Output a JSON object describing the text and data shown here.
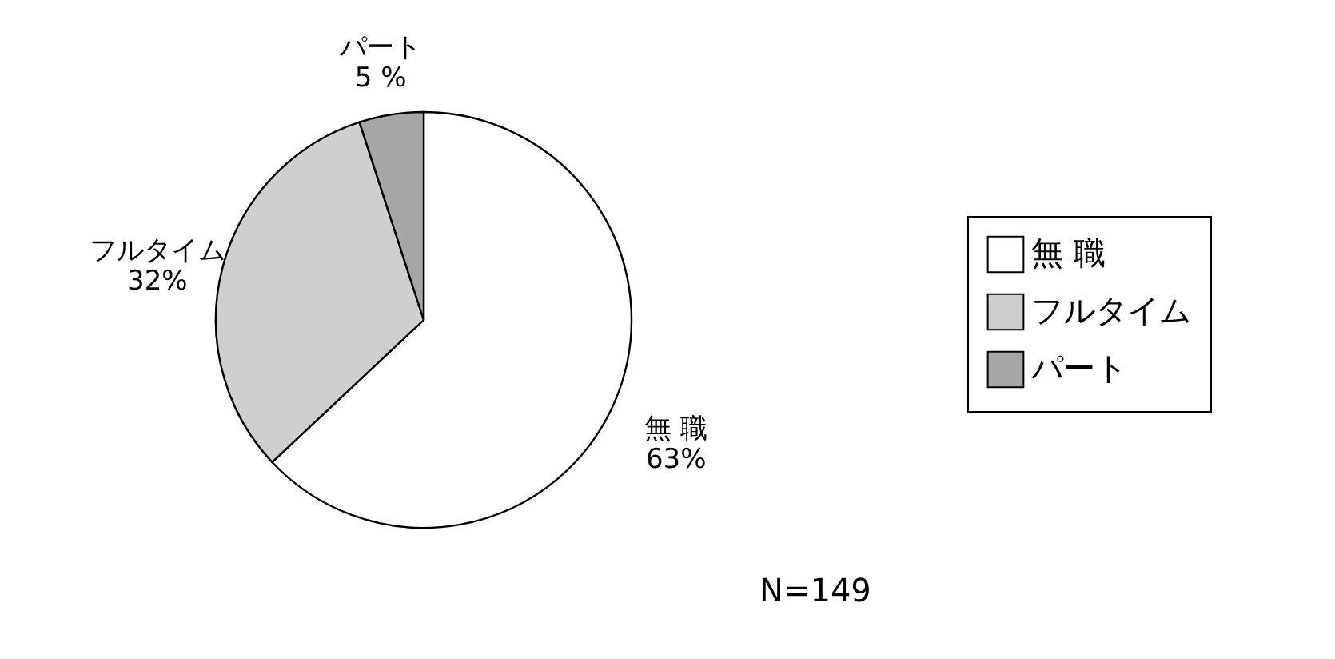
{
  "chart_data": {
    "type": "pie",
    "categories": [
      "無 職",
      "フルタイム",
      "パート"
    ],
    "values": [
      63,
      32,
      5
    ],
    "colors": [
      "#ffffff",
      "#cfcfcf",
      "#a6a6a6"
    ],
    "value_labels": [
      "63%",
      "32%",
      "5 %"
    ],
    "legend": "right",
    "annotations": [
      "N=149"
    ]
  }
}
